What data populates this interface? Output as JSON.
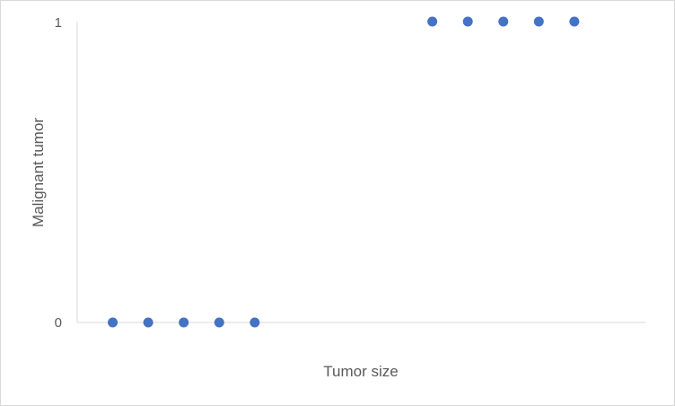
{
  "chart_data": {
    "type": "scatter",
    "title": "",
    "xlabel": "Tumor size",
    "ylabel": "Malignant tumor",
    "x_ticks_shown": false,
    "y_ticks": [
      "0",
      "1"
    ],
    "ylim": [
      0,
      1
    ],
    "xlim": [
      0,
      16
    ],
    "grid": false,
    "legend": "none",
    "marker_color": "#4472C4",
    "axis_color": "#d9d9d9",
    "series": [
      {
        "points": [
          {
            "x": 1,
            "y": 0
          },
          {
            "x": 2,
            "y": 0
          },
          {
            "x": 3,
            "y": 0
          },
          {
            "x": 4,
            "y": 0
          },
          {
            "x": 5,
            "y": 0
          },
          {
            "x": 10,
            "y": 1
          },
          {
            "x": 11,
            "y": 1
          },
          {
            "x": 12,
            "y": 1
          },
          {
            "x": 13,
            "y": 1
          },
          {
            "x": 14,
            "y": 1
          }
        ]
      }
    ]
  }
}
